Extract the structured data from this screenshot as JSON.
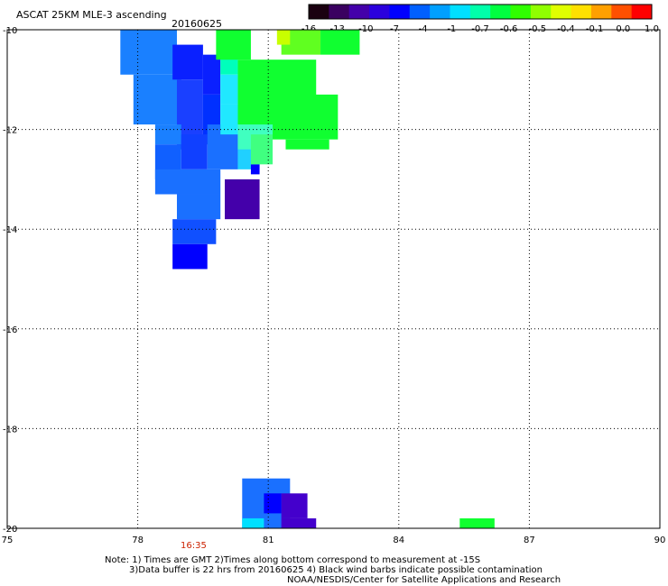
{
  "header": {
    "title": "ASCAT 25KM MLE-3 ascending",
    "date": "20160625"
  },
  "colorbar": {
    "labels": [
      "-16",
      "-13",
      "-10",
      "-7",
      "-4",
      "-1",
      "-0.7",
      "-0.6",
      "-0.5",
      "-0.4",
      "-0.1",
      "0.0",
      "1.0"
    ],
    "colors": [
      "#1a0010",
      "#3a0060",
      "#4400aa",
      "#2b00dd",
      "#0000ff",
      "#0060ff",
      "#00a0ff",
      "#00e0ff",
      "#00ffaa",
      "#00ff40",
      "#30ff00",
      "#90ff00",
      "#e0ff00",
      "#ffe000",
      "#ffa000",
      "#ff5000",
      "#ff0000"
    ]
  },
  "time_label": "16:35",
  "notes": {
    "line1": "Note: 1) Times are GMT 2)Times along bottom correspond to measurement at -15S",
    "line2": "3)Data buffer is 22 hrs from 20160625 4) Black wind barbs indicate possible contamination",
    "line3": "NOAA/NESDIS/Center for Satellite Applications and Research"
  },
  "chart_data": {
    "type": "heatmap",
    "title": "ASCAT 25KM MLE-3 ascending",
    "xlabel": "",
    "ylabel": "",
    "xlim": [
      75,
      90
    ],
    "ylim": [
      -20,
      -10
    ],
    "x_ticks": [
      75,
      78,
      81,
      84,
      87,
      90
    ],
    "y_ticks": [
      -10,
      -12,
      -14,
      -16,
      -18,
      -20
    ],
    "grid": true,
    "cells": [
      {
        "x0": 77.6,
        "x1": 78.9,
        "y0": -10.9,
        "y1": -10.0,
        "color": "#1a80ff"
      },
      {
        "x0": 77.9,
        "x1": 79.0,
        "y0": -11.9,
        "y1": -10.9,
        "color": "#1a80ff"
      },
      {
        "x0": 78.8,
        "x1": 79.5,
        "y0": -11.0,
        "y1": -10.3,
        "color": "#0a20ff"
      },
      {
        "x0": 78.9,
        "x1": 79.5,
        "y0": -12.4,
        "y1": -11.0,
        "color": "#1a40ff"
      },
      {
        "x0": 79.5,
        "x1": 79.9,
        "y0": -11.3,
        "y1": -10.5,
        "color": "#0a20ff"
      },
      {
        "x0": 79.5,
        "x1": 79.9,
        "y0": -12.3,
        "y1": -11.3,
        "color": "#0030ff"
      },
      {
        "x0": 78.4,
        "x1": 79.0,
        "y0": -12.3,
        "y1": -11.9,
        "color": "#1a80ff"
      },
      {
        "x0": 78.4,
        "x1": 79.0,
        "y0": -13.0,
        "y1": -12.3,
        "color": "#1060ff"
      },
      {
        "x0": 79.0,
        "x1": 79.6,
        "y0": -12.8,
        "y1": -12.1,
        "color": "#1040ff"
      },
      {
        "x0": 78.4,
        "x1": 79.9,
        "y0": -13.3,
        "y1": -12.8,
        "color": "#1a70ff"
      },
      {
        "x0": 78.9,
        "x1": 79.9,
        "y0": -13.8,
        "y1": -13.3,
        "color": "#1a70ff"
      },
      {
        "x0": 79.6,
        "x1": 80.3,
        "y0": -12.8,
        "y1": -11.9,
        "color": "#1a70ff"
      },
      {
        "x0": 78.8,
        "x1": 79.8,
        "y0": -14.3,
        "y1": -13.8,
        "color": "#1050ff"
      },
      {
        "x0": 78.8,
        "x1": 79.6,
        "y0": -14.8,
        "y1": -14.3,
        "color": "#0000ff"
      },
      {
        "x0": 80.0,
        "x1": 80.8,
        "y0": -13.8,
        "y1": -13.0,
        "color": "#4400aa"
      },
      {
        "x0": 80.3,
        "x1": 80.8,
        "y0": -12.8,
        "y1": -12.1,
        "color": "#20d0ff"
      },
      {
        "x0": 80.6,
        "x1": 80.8,
        "y0": -12.9,
        "y1": -12.7,
        "color": "#0000ff"
      },
      {
        "x0": 79.9,
        "x1": 80.3,
        "y0": -10.9,
        "y1": -10.4,
        "color": "#00ffbb"
      },
      {
        "x0": 79.9,
        "x1": 80.3,
        "y0": -11.5,
        "y1": -10.9,
        "color": "#20e8ff"
      },
      {
        "x0": 79.9,
        "x1": 80.5,
        "y0": -12.1,
        "y1": -11.5,
        "color": "#20e8ff"
      },
      {
        "x0": 80.3,
        "x1": 81.1,
        "y0": -12.4,
        "y1": -11.8,
        "color": "#40ffc0"
      },
      {
        "x0": 79.8,
        "x1": 80.6,
        "y0": -10.6,
        "y1": -10.0,
        "color": "#10ff30"
      },
      {
        "x0": 80.3,
        "x1": 82.1,
        "y0": -11.9,
        "y1": -10.6,
        "color": "#10ff30"
      },
      {
        "x0": 81.1,
        "x1": 82.6,
        "y0": -12.2,
        "y1": -11.3,
        "color": "#10ff30"
      },
      {
        "x0": 81.4,
        "x1": 82.4,
        "y0": -12.4,
        "y1": -12.2,
        "color": "#10ff30"
      },
      {
        "x0": 80.6,
        "x1": 81.1,
        "y0": -12.7,
        "y1": -12.1,
        "color": "#40ff80"
      },
      {
        "x0": 81.3,
        "x1": 82.2,
        "y0": -10.5,
        "y1": -10.0,
        "color": "#60ff20"
      },
      {
        "x0": 82.2,
        "x1": 83.1,
        "y0": -10.5,
        "y1": -10.0,
        "color": "#10ff30"
      },
      {
        "x0": 81.2,
        "x1": 81.5,
        "y0": -10.3,
        "y1": -10.0,
        "color": "#c8ff00"
      },
      {
        "x0": 80.4,
        "x1": 81.5,
        "y0": -20.0,
        "y1": -19.0,
        "color": "#1a70ff"
      },
      {
        "x0": 80.4,
        "x1": 80.9,
        "y0": -20.0,
        "y1": -19.8,
        "color": "#00e0ff"
      },
      {
        "x0": 80.9,
        "x1": 81.3,
        "y0": -19.7,
        "y1": -19.3,
        "color": "#0000ff"
      },
      {
        "x0": 81.3,
        "x1": 81.9,
        "y0": -19.8,
        "y1": -19.3,
        "color": "#4400cc"
      },
      {
        "x0": 81.3,
        "x1": 82.1,
        "y0": -20.0,
        "y1": -19.8,
        "color": "#4400cc"
      },
      {
        "x0": 85.4,
        "x1": 86.2,
        "y0": -20.0,
        "y1": -19.8,
        "color": "#10ff30"
      }
    ]
  }
}
